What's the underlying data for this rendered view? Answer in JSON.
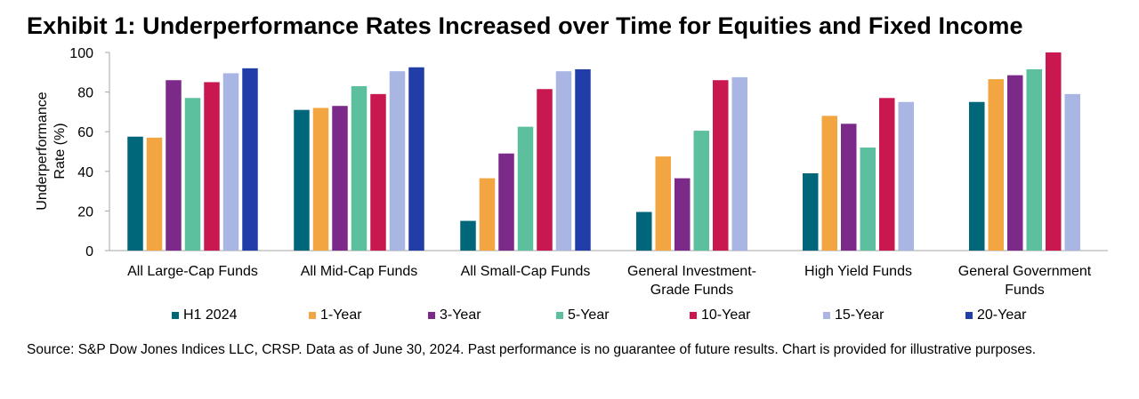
{
  "title": "Exhibit 1: Underperformance Rates Increased over Time for Equities and Fixed Income",
  "source": "Source: S&P Dow Jones Indices LLC, CRSP.  Data as of June 30, 2024.  Past performance is no guarantee of future results.  Chart is provided for illustrative purposes.",
  "chart_data": {
    "type": "bar",
    "title": "Exhibit 1: Underperformance Rates Increased over Time for Equities and Fixed Income",
    "ylabel": "Underperformance Rate (%)",
    "ylabel_lines": [
      "Underperformance",
      "Rate (%)"
    ],
    "xlabel": "",
    "ylim": [
      0,
      100
    ],
    "yticks": [
      0,
      20,
      40,
      60,
      80,
      100
    ],
    "grid": false,
    "legend_position": "bottom",
    "categories": [
      [
        "All Large-Cap Funds"
      ],
      [
        "All Mid-Cap Funds"
      ],
      [
        "All Small-Cap Funds"
      ],
      [
        "General Investment-",
        "Grade Funds"
      ],
      [
        "High Yield Funds"
      ],
      [
        "General Government",
        "Funds"
      ]
    ],
    "series": [
      {
        "name": "H1 2024",
        "color": "#00667a",
        "values": [
          57.5,
          71,
          15,
          19.5,
          39,
          75
        ]
      },
      {
        "name": "1-Year",
        "color": "#f2a541",
        "values": [
          57,
          72,
          36.5,
          47.5,
          68,
          86.5
        ]
      },
      {
        "name": "3-Year",
        "color": "#7b2a8a",
        "values": [
          86,
          73,
          49,
          36.5,
          64,
          88.5
        ]
      },
      {
        "name": "5-Year",
        "color": "#5cc09f",
        "values": [
          77,
          83,
          62.5,
          60.5,
          52,
          91.5
        ]
      },
      {
        "name": "10-Year",
        "color": "#c8184f",
        "values": [
          85,
          79,
          81.5,
          86,
          77,
          100
        ]
      },
      {
        "name": "15-Year",
        "color": "#a9b5e3",
        "values": [
          89.5,
          90.5,
          90.5,
          87.5,
          75,
          79
        ]
      },
      {
        "name": "20-Year",
        "color": "#213ea8",
        "values": [
          92,
          92.5,
          91.5,
          null,
          null,
          null
        ]
      }
    ]
  }
}
